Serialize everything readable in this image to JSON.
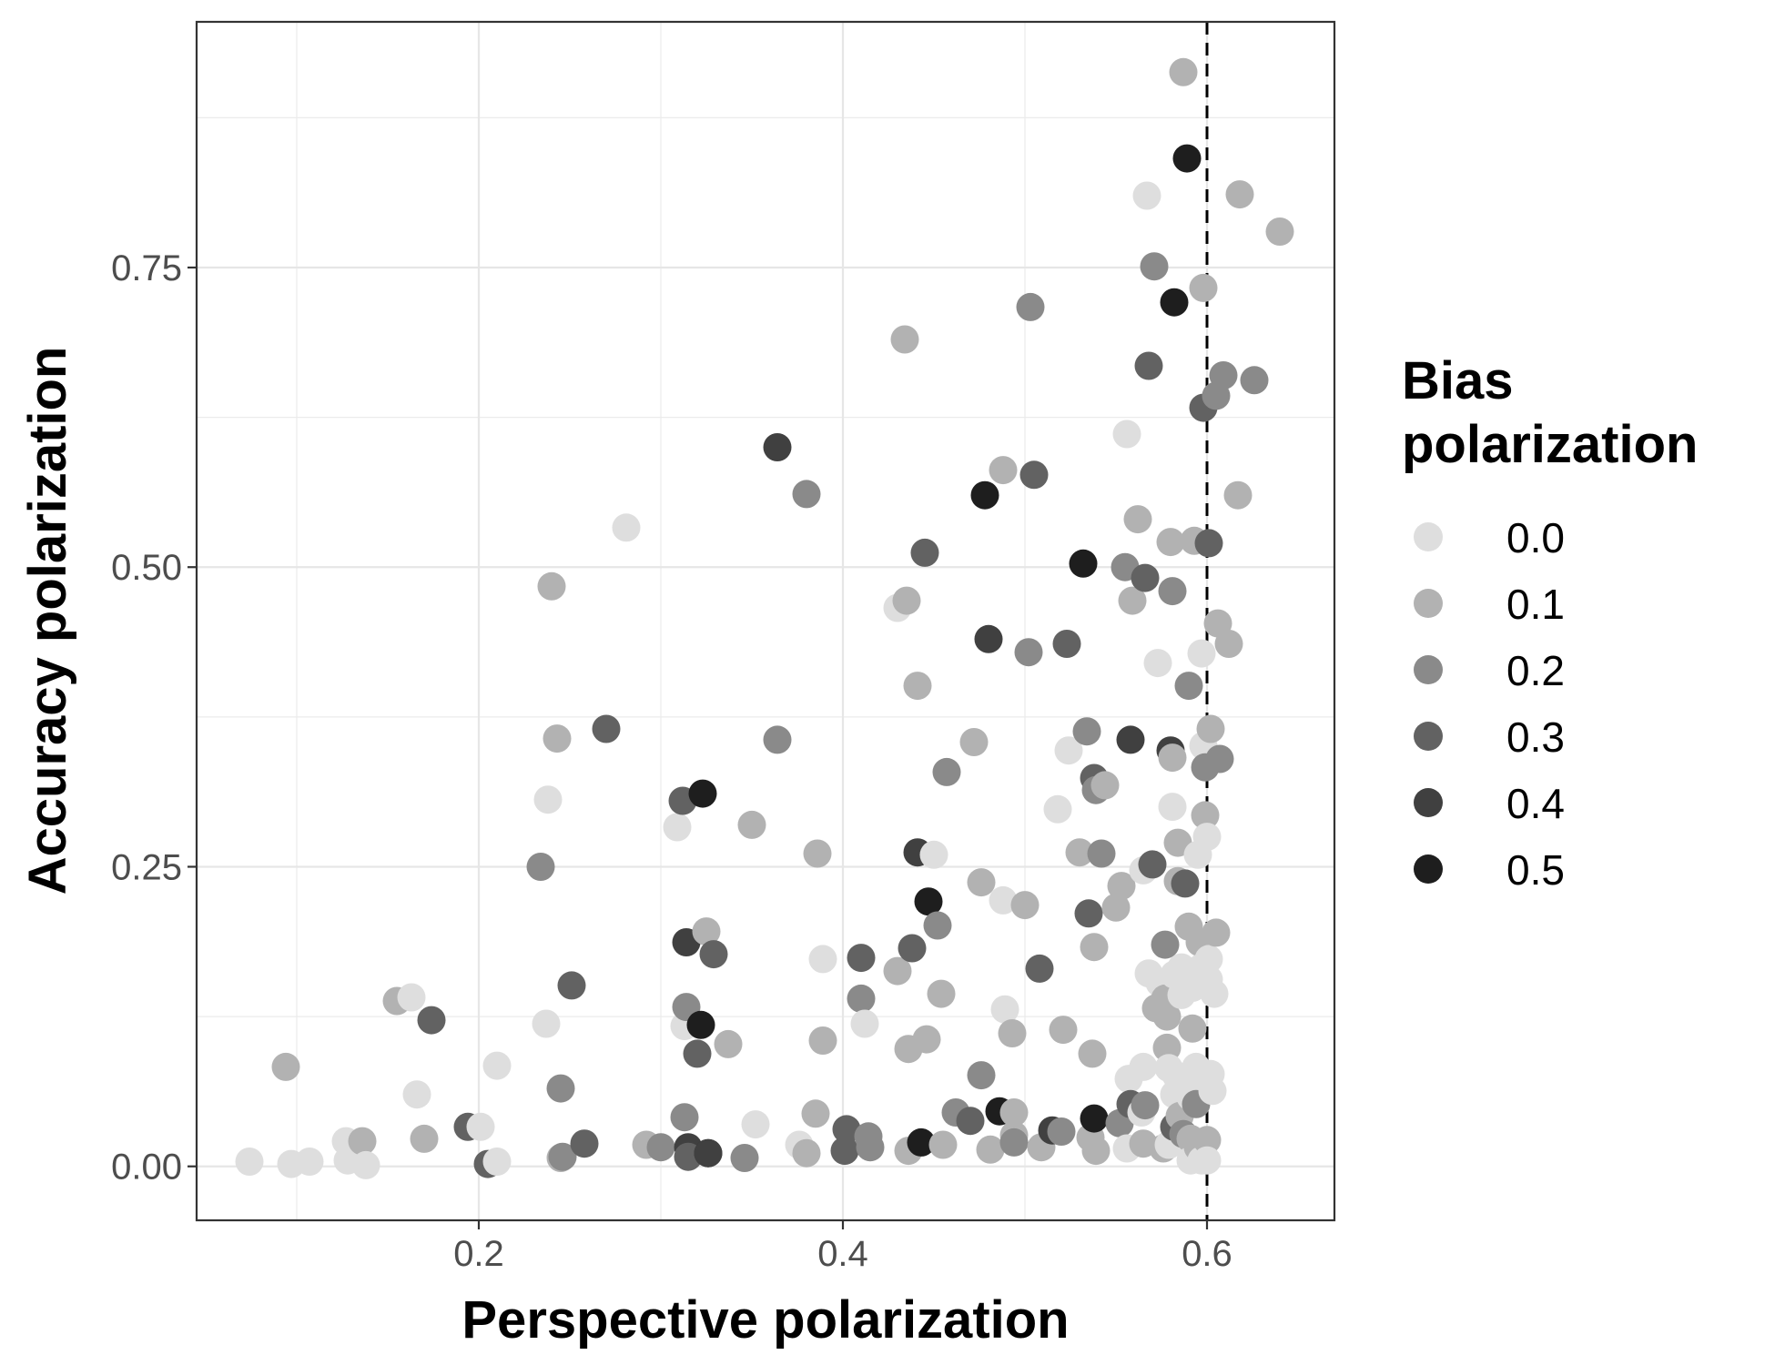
{
  "chart_data": {
    "type": "scatter",
    "xlabel": "Perspective polarization",
    "ylabel": "Accuracy polarization",
    "xlim": [
      0.045,
      0.67
    ],
    "ylim": [
      -0.045,
      0.955
    ],
    "x_ticks": [
      {
        "value": 0.2,
        "label": "0.2"
      },
      {
        "value": 0.4,
        "label": "0.4"
      },
      {
        "value": 0.6,
        "label": "0.6"
      }
    ],
    "y_ticks": [
      {
        "value": 0.0,
        "label": "0.00"
      },
      {
        "value": 0.25,
        "label": "0.25"
      },
      {
        "value": 0.5,
        "label": "0.50"
      },
      {
        "value": 0.75,
        "label": "0.75"
      }
    ],
    "x_minor_grid": [
      0.1,
      0.3,
      0.5
    ],
    "y_minor_grid": [
      0.125,
      0.375,
      0.625,
      0.875
    ],
    "grid": true,
    "reference_line": {
      "x": 0.6,
      "style": "dashed",
      "color": "#000000"
    },
    "legend": {
      "title": "Bias\npolarization",
      "position": "right",
      "entries": [
        {
          "label": "0.0",
          "value": 0.0
        },
        {
          "label": "0.1",
          "value": 0.1
        },
        {
          "label": "0.2",
          "value": 0.2
        },
        {
          "label": "0.3",
          "value": 0.3
        },
        {
          "label": "0.4",
          "value": 0.4
        },
        {
          "label": "0.5",
          "value": 0.5
        }
      ]
    },
    "colors": {
      "0.0": "#dedede",
      "0.1": "#b2b2b2",
      "0.2": "#8a8a8a",
      "0.3": "#626262",
      "0.4": "#404040",
      "0.5": "#1e1e1e"
    },
    "points": [
      [
        0.074,
        0.004,
        0.0
      ],
      [
        0.097,
        0.002,
        0.0
      ],
      [
        0.107,
        0.004,
        0.0
      ],
      [
        0.127,
        0.021,
        0.0
      ],
      [
        0.128,
        0.005,
        0.0
      ],
      [
        0.136,
        0.021,
        0.1
      ],
      [
        0.138,
        0.001,
        0.0
      ],
      [
        0.094,
        0.083,
        0.1
      ],
      [
        0.155,
        0.138,
        0.1
      ],
      [
        0.163,
        0.141,
        0.0
      ],
      [
        0.166,
        0.06,
        0.0
      ],
      [
        0.17,
        0.023,
        0.1
      ],
      [
        0.174,
        0.122,
        0.3
      ],
      [
        0.194,
        0.033,
        0.3
      ],
      [
        0.201,
        0.033,
        0.0
      ],
      [
        0.205,
        0.002,
        0.3
      ],
      [
        0.21,
        0.004,
        0.0
      ],
      [
        0.21,
        0.084,
        0.0
      ],
      [
        0.234,
        0.25,
        0.2
      ],
      [
        0.237,
        0.119,
        0.0
      ],
      [
        0.238,
        0.306,
        0.0
      ],
      [
        0.24,
        0.484,
        0.1
      ],
      [
        0.243,
        0.357,
        0.1
      ],
      [
        0.245,
        0.065,
        0.2
      ],
      [
        0.245,
        0.007,
        0.1
      ],
      [
        0.246,
        0.008,
        0.2
      ],
      [
        0.251,
        0.151,
        0.3
      ],
      [
        0.258,
        0.019,
        0.3
      ],
      [
        0.27,
        0.365,
        0.3
      ],
      [
        0.281,
        0.533,
        0.0
      ],
      [
        0.292,
        0.018,
        0.1
      ],
      [
        0.3,
        0.016,
        0.2
      ],
      [
        0.309,
        0.283,
        0.0
      ],
      [
        0.312,
        0.305,
        0.3
      ],
      [
        0.313,
        0.117,
        0.0
      ],
      [
        0.313,
        0.041,
        0.2
      ],
      [
        0.314,
        0.187,
        0.4
      ],
      [
        0.314,
        0.133,
        0.2
      ],
      [
        0.315,
        0.016,
        0.4
      ],
      [
        0.315,
        0.008,
        0.3
      ],
      [
        0.32,
        0.094,
        0.3
      ],
      [
        0.322,
        0.118,
        0.5
      ],
      [
        0.323,
        0.311,
        0.5
      ],
      [
        0.325,
        0.196,
        0.1
      ],
      [
        0.326,
        0.011,
        0.5
      ],
      [
        0.326,
        0.011,
        0.4
      ],
      [
        0.329,
        0.177,
        0.3
      ],
      [
        0.337,
        0.102,
        0.1
      ],
      [
        0.346,
        0.007,
        0.2
      ],
      [
        0.35,
        0.285,
        0.1
      ],
      [
        0.352,
        0.035,
        0.0
      ],
      [
        0.364,
        0.6,
        0.4
      ],
      [
        0.364,
        0.356,
        0.2
      ],
      [
        0.376,
        0.018,
        0.0
      ],
      [
        0.38,
        0.561,
        0.2
      ],
      [
        0.38,
        0.011,
        0.1
      ],
      [
        0.385,
        0.044,
        0.1
      ],
      [
        0.386,
        0.261,
        0.1
      ],
      [
        0.389,
        0.105,
        0.1
      ],
      [
        0.389,
        0.173,
        0.0
      ],
      [
        0.401,
        0.013,
        0.3
      ],
      [
        0.402,
        0.031,
        0.3
      ],
      [
        0.41,
        0.174,
        0.3
      ],
      [
        0.41,
        0.14,
        0.2
      ],
      [
        0.412,
        0.119,
        0.0
      ],
      [
        0.414,
        0.025,
        0.2
      ],
      [
        0.415,
        0.016,
        0.2
      ],
      [
        0.43,
        0.163,
        0.1
      ],
      [
        0.43,
        0.466,
        0.0
      ],
      [
        0.434,
        0.69,
        0.1
      ],
      [
        0.435,
        0.472,
        0.1
      ],
      [
        0.436,
        0.098,
        0.1
      ],
      [
        0.436,
        0.013,
        0.1
      ],
      [
        0.438,
        0.182,
        0.3
      ],
      [
        0.441,
        0.262,
        0.4
      ],
      [
        0.441,
        0.401,
        0.1
      ],
      [
        0.443,
        0.02,
        0.5
      ],
      [
        0.445,
        0.512,
        0.3
      ],
      [
        0.446,
        0.106,
        0.1
      ],
      [
        0.447,
        0.221,
        0.5
      ],
      [
        0.45,
        0.26,
        0.0
      ],
      [
        0.452,
        0.201,
        0.2
      ],
      [
        0.454,
        0.144,
        0.1
      ],
      [
        0.455,
        0.018,
        0.1
      ],
      [
        0.457,
        0.329,
        0.2
      ],
      [
        0.462,
        0.045,
        0.2
      ],
      [
        0.47,
        0.038,
        0.3
      ],
      [
        0.472,
        0.354,
        0.1
      ],
      [
        0.476,
        0.076,
        0.2
      ],
      [
        0.476,
        0.237,
        0.1
      ],
      [
        0.478,
        0.56,
        0.5
      ],
      [
        0.48,
        0.44,
        0.4
      ],
      [
        0.481,
        0.014,
        0.1
      ],
      [
        0.486,
        0.046,
        0.5
      ],
      [
        0.488,
        0.581,
        0.1
      ],
      [
        0.488,
        0.222,
        0.0
      ],
      [
        0.489,
        0.131,
        0.0
      ],
      [
        0.493,
        0.111,
        0.1
      ],
      [
        0.494,
        0.045,
        0.1
      ],
      [
        0.494,
        0.026,
        0.1
      ],
      [
        0.494,
        0.02,
        0.2
      ],
      [
        0.5,
        0.218,
        0.1
      ],
      [
        0.502,
        0.429,
        0.2
      ],
      [
        0.503,
        0.717,
        0.2
      ],
      [
        0.505,
        0.577,
        0.3
      ],
      [
        0.508,
        0.165,
        0.3
      ],
      [
        0.509,
        0.016,
        0.1
      ],
      [
        0.515,
        0.03,
        0.4
      ],
      [
        0.518,
        0.298,
        0.0
      ],
      [
        0.52,
        0.029,
        0.2
      ],
      [
        0.521,
        0.114,
        0.1
      ],
      [
        0.523,
        0.436,
        0.3
      ],
      [
        0.524,
        0.347,
        0.0
      ],
      [
        0.53,
        0.262,
        0.1
      ],
      [
        0.532,
        0.503,
        0.5
      ],
      [
        0.534,
        0.363,
        0.2
      ],
      [
        0.535,
        0.211,
        0.3
      ],
      [
        0.536,
        0.024,
        0.1
      ],
      [
        0.537,
        0.094,
        0.1
      ],
      [
        0.538,
        0.324,
        0.3
      ],
      [
        0.538,
        0.183,
        0.1
      ],
      [
        0.538,
        0.04,
        0.5
      ],
      [
        0.539,
        0.314,
        0.2
      ],
      [
        0.539,
        0.013,
        0.1
      ],
      [
        0.542,
        0.261,
        0.2
      ],
      [
        0.544,
        0.318,
        0.1
      ],
      [
        0.55,
        0.216,
        0.1
      ],
      [
        0.552,
        0.036,
        0.2
      ],
      [
        0.553,
        0.234,
        0.1
      ],
      [
        0.555,
        0.5,
        0.2
      ],
      [
        0.556,
        0.611,
        0.0
      ],
      [
        0.556,
        0.015,
        0.0
      ],
      [
        0.557,
        0.073,
        0.0
      ],
      [
        0.558,
        0.052,
        0.3
      ],
      [
        0.558,
        0.356,
        0.4
      ],
      [
        0.559,
        0.472,
        0.1
      ],
      [
        0.562,
        0.54,
        0.1
      ],
      [
        0.564,
        0.045,
        0.0
      ],
      [
        0.565,
        0.247,
        0.0
      ],
      [
        0.565,
        0.083,
        0.0
      ],
      [
        0.565,
        0.019,
        0.1
      ],
      [
        0.566,
        0.051,
        0.2
      ],
      [
        0.566,
        0.491,
        0.3
      ],
      [
        0.567,
        0.81,
        0.0
      ],
      [
        0.568,
        0.161,
        0.0
      ],
      [
        0.568,
        0.668,
        0.3
      ],
      [
        0.57,
        0.252,
        0.3
      ],
      [
        0.571,
        0.751,
        0.2
      ],
      [
        0.572,
        0.132,
        0.1
      ],
      [
        0.573,
        0.42,
        0.0
      ],
      [
        0.574,
        0.153,
        0.0
      ],
      [
        0.576,
        0.015,
        0.1
      ],
      [
        0.577,
        0.14,
        0.1
      ],
      [
        0.577,
        0.185,
        0.2
      ],
      [
        0.578,
        0.125,
        0.1
      ],
      [
        0.578,
        0.099,
        0.1
      ],
      [
        0.579,
        0.018,
        0.0
      ],
      [
        0.579,
        0.082,
        0.0
      ],
      [
        0.58,
        0.521,
        0.1
      ],
      [
        0.58,
        0.347,
        0.4
      ],
      [
        0.581,
        0.48,
        0.2
      ],
      [
        0.581,
        0.341,
        0.1
      ],
      [
        0.581,
        0.3,
        0.0
      ],
      [
        0.582,
        0.16,
        0.0
      ],
      [
        0.582,
        0.06,
        0.0
      ],
      [
        0.582,
        0.033,
        0.3
      ],
      [
        0.582,
        0.721,
        0.5
      ],
      [
        0.583,
        0.076,
        0.0
      ],
      [
        0.584,
        0.238,
        0.1
      ],
      [
        0.584,
        0.27,
        0.1
      ],
      [
        0.585,
        0.042,
        0.1
      ],
      [
        0.586,
        0.166,
        0.0
      ],
      [
        0.586,
        0.143,
        0.0
      ],
      [
        0.587,
        0.027,
        0.2
      ],
      [
        0.587,
        0.913,
        0.1
      ],
      [
        0.588,
        0.236,
        0.3
      ],
      [
        0.589,
        0.841,
        0.5
      ],
      [
        0.59,
        0.401,
        0.2
      ],
      [
        0.59,
        0.2,
        0.1
      ],
      [
        0.591,
        0.058,
        0.0
      ],
      [
        0.591,
        0.023,
        0.1
      ],
      [
        0.591,
        0.005,
        0.0
      ],
      [
        0.592,
        0.149,
        0.0
      ],
      [
        0.592,
        0.115,
        0.1
      ],
      [
        0.593,
        0.522,
        0.1
      ],
      [
        0.593,
        0.062,
        0.0
      ],
      [
        0.594,
        0.083,
        0.0
      ],
      [
        0.594,
        0.052,
        0.2
      ],
      [
        0.595,
        0.016,
        0.1
      ],
      [
        0.595,
        0.26,
        0.0
      ],
      [
        0.596,
        0.187,
        0.1
      ],
      [
        0.597,
        0.428,
        0.0
      ],
      [
        0.597,
        0.166,
        0.0
      ],
      [
        0.597,
        0.005,
        0.0
      ],
      [
        0.598,
        0.733,
        0.1
      ],
      [
        0.598,
        0.633,
        0.3
      ],
      [
        0.598,
        0.351,
        0.0
      ],
      [
        0.599,
        0.333,
        0.2
      ],
      [
        0.599,
        0.293,
        0.1
      ],
      [
        0.6,
        0.275,
        0.0
      ],
      [
        0.6,
        0.022,
        0.1
      ],
      [
        0.6,
        0.005,
        0.0
      ],
      [
        0.601,
        0.52,
        0.3
      ],
      [
        0.601,
        0.173,
        0.0
      ],
      [
        0.601,
        0.156,
        0.0
      ],
      [
        0.602,
        0.365,
        0.1
      ],
      [
        0.602,
        0.077,
        0.0
      ],
      [
        0.603,
        0.063,
        0.0
      ],
      [
        0.604,
        0.144,
        0.0
      ],
      [
        0.605,
        0.195,
        0.1
      ],
      [
        0.605,
        0.643,
        0.2
      ],
      [
        0.606,
        0.453,
        0.1
      ],
      [
        0.607,
        0.34,
        0.2
      ],
      [
        0.609,
        0.66,
        0.2
      ],
      [
        0.612,
        0.436,
        0.1
      ],
      [
        0.617,
        0.56,
        0.1
      ],
      [
        0.618,
        0.811,
        0.1
      ],
      [
        0.626,
        0.656,
        0.2
      ],
      [
        0.64,
        0.78,
        0.1
      ]
    ]
  }
}
